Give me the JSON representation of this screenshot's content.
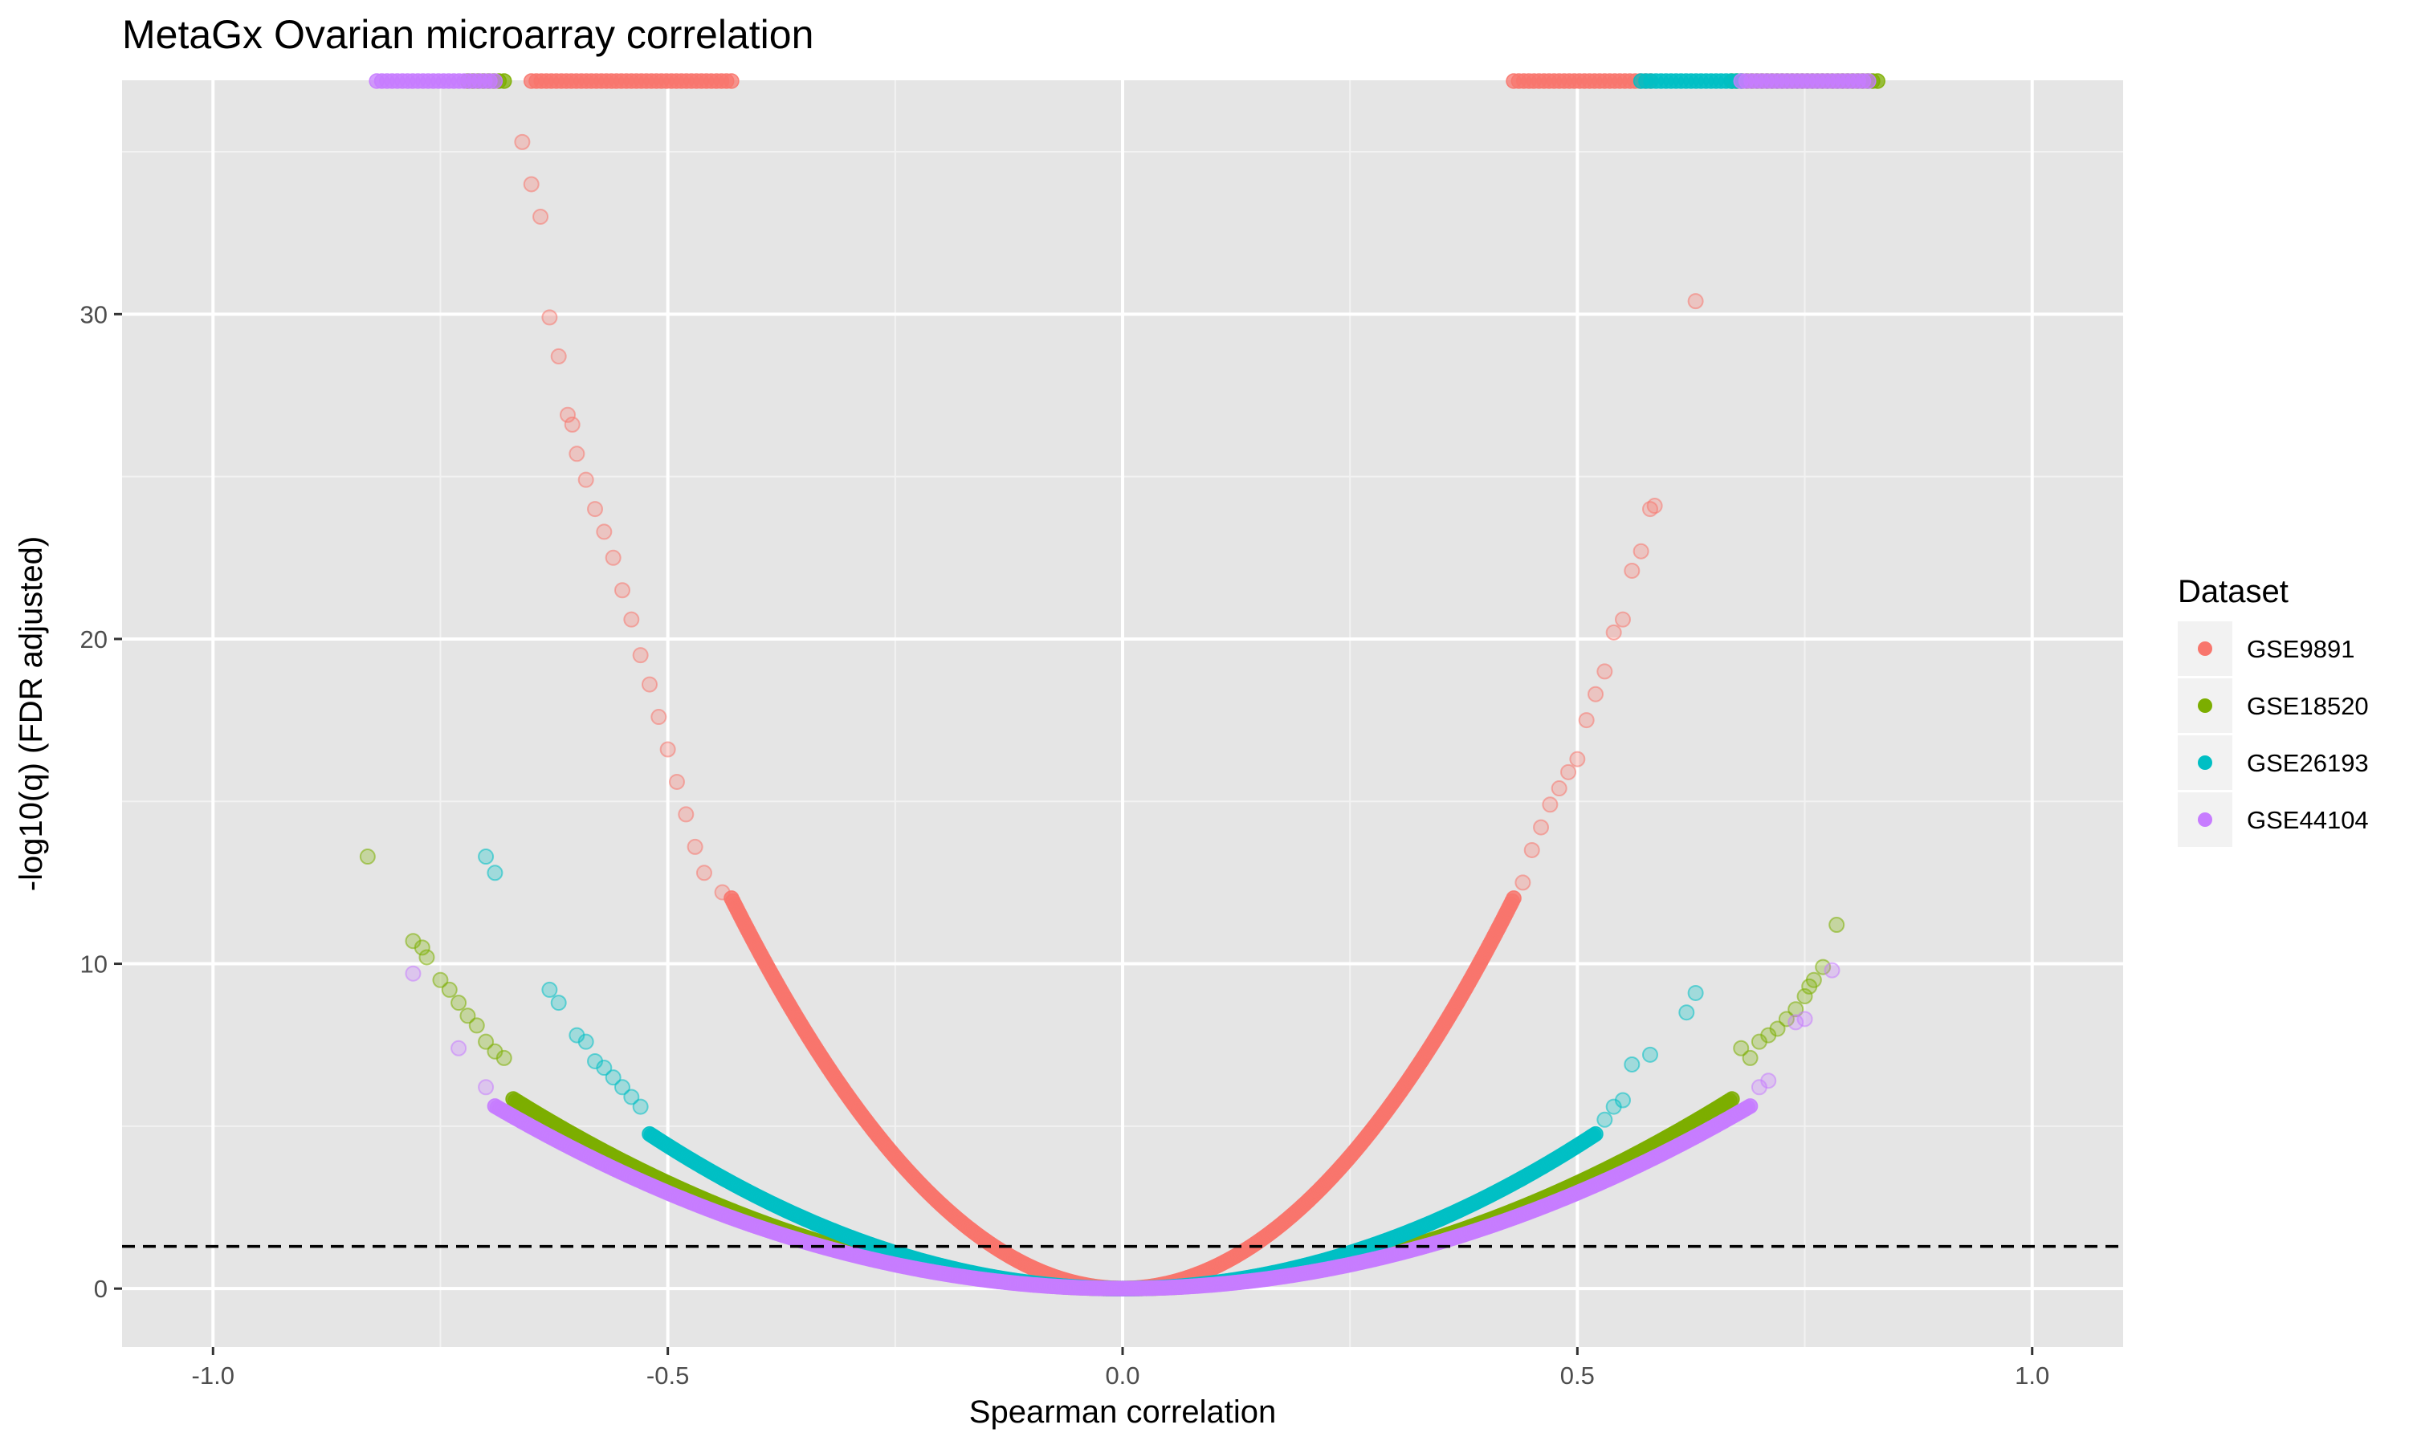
{
  "chart_data": {
    "type": "scatter",
    "title": "MetaGx Ovarian microarray correlation",
    "xlabel": "Spearman correlation",
    "ylabel": "-log10(q) (FDR adjusted)",
    "xlim": [
      -1.1,
      1.1
    ],
    "ylim": [
      -1.8,
      37.2
    ],
    "x_ticks": [
      -1.0,
      -0.5,
      0.0,
      0.5,
      1.0
    ],
    "x_tick_labels": [
      "-1.0",
      "-0.5",
      "0.0",
      "0.5",
      "1.0"
    ],
    "y_ticks": [
      0,
      10,
      20,
      30
    ],
    "y_tick_labels": [
      "0",
      "10",
      "20",
      "30"
    ],
    "grid": true,
    "background": "#e5e5e5",
    "threshold_line": {
      "y": 1.3,
      "style": "dashed",
      "color": "#000000"
    },
    "legend": {
      "title": "Dataset",
      "position": "right"
    },
    "series": [
      {
        "name": "GSE9891",
        "color": "#f8766d",
        "curve": {
          "k": 65.0,
          "x_min": -0.43,
          "x_max": 0.43
        },
        "outliers": [
          [
            -0.66,
            35.3
          ],
          [
            -0.65,
            34.0
          ],
          [
            -0.64,
            33.0
          ],
          [
            -0.63,
            29.9
          ],
          [
            -0.62,
            28.7
          ],
          [
            -0.61,
            26.9
          ],
          [
            -0.605,
            26.6
          ],
          [
            -0.6,
            25.7
          ],
          [
            -0.59,
            24.9
          ],
          [
            -0.58,
            24.0
          ],
          [
            -0.57,
            23.3
          ],
          [
            -0.56,
            22.5
          ],
          [
            -0.55,
            21.5
          ],
          [
            -0.54,
            20.6
          ],
          [
            -0.53,
            19.5
          ],
          [
            -0.52,
            18.6
          ],
          [
            -0.51,
            17.6
          ],
          [
            -0.5,
            16.6
          ],
          [
            -0.49,
            15.6
          ],
          [
            -0.48,
            14.6
          ],
          [
            -0.47,
            13.6
          ],
          [
            -0.46,
            12.8
          ],
          [
            -0.44,
            12.2
          ],
          [
            0.44,
            12.5
          ],
          [
            0.45,
            13.5
          ],
          [
            0.46,
            14.2
          ],
          [
            0.47,
            14.9
          ],
          [
            0.48,
            15.4
          ],
          [
            0.49,
            15.9
          ],
          [
            0.5,
            16.3
          ],
          [
            0.51,
            17.5
          ],
          [
            0.52,
            18.3
          ],
          [
            0.53,
            19.0
          ],
          [
            0.54,
            20.2
          ],
          [
            0.55,
            20.6
          ],
          [
            0.56,
            22.1
          ],
          [
            0.57,
            22.7
          ],
          [
            0.58,
            24.0
          ],
          [
            0.585,
            24.1
          ],
          [
            0.63,
            30.4
          ]
        ],
        "capped": [
          [
            -0.65,
            -0.43
          ],
          [
            0.43,
            0.58
          ]
        ]
      },
      {
        "name": "GSE18520",
        "color": "#7cae00",
        "curve": {
          "k": 13.0,
          "x_min": -0.67,
          "x_max": 0.67
        },
        "outliers": [
          [
            -0.83,
            13.3
          ],
          [
            -0.78,
            10.7
          ],
          [
            -0.77,
            10.5
          ],
          [
            -0.765,
            10.2
          ],
          [
            -0.75,
            9.5
          ],
          [
            -0.74,
            9.2
          ],
          [
            -0.73,
            8.8
          ],
          [
            -0.72,
            8.4
          ],
          [
            -0.71,
            8.1
          ],
          [
            -0.7,
            7.6
          ],
          [
            -0.69,
            7.3
          ],
          [
            -0.68,
            7.1
          ],
          [
            0.68,
            7.4
          ],
          [
            0.69,
            7.1
          ],
          [
            0.7,
            7.6
          ],
          [
            0.71,
            7.8
          ],
          [
            0.72,
            8.0
          ],
          [
            0.73,
            8.3
          ],
          [
            0.74,
            8.6
          ],
          [
            0.75,
            9.0
          ],
          [
            0.755,
            9.3
          ],
          [
            0.76,
            9.5
          ],
          [
            0.77,
            9.9
          ],
          [
            0.785,
            11.2
          ]
        ],
        "capped": [
          [
            -0.72,
            -0.68
          ],
          [
            0.67,
            0.83
          ]
        ]
      },
      {
        "name": "GSE26193",
        "color": "#00bfc4",
        "curve": {
          "k": 17.6,
          "x_min": -0.52,
          "x_max": 0.52
        },
        "outliers": [
          [
            -0.7,
            13.3
          ],
          [
            -0.69,
            12.8
          ],
          [
            -0.63,
            9.2
          ],
          [
            -0.62,
            8.8
          ],
          [
            -0.6,
            7.8
          ],
          [
            -0.59,
            7.6
          ],
          [
            -0.58,
            7.0
          ],
          [
            -0.57,
            6.8
          ],
          [
            -0.56,
            6.5
          ],
          [
            -0.55,
            6.2
          ],
          [
            -0.54,
            5.9
          ],
          [
            -0.53,
            5.6
          ],
          [
            0.53,
            5.2
          ],
          [
            0.54,
            5.6
          ],
          [
            0.55,
            5.8
          ],
          [
            0.56,
            6.9
          ],
          [
            0.58,
            7.2
          ],
          [
            0.62,
            8.5
          ],
          [
            0.63,
            9.1
          ]
        ],
        "capped": [
          [
            0.57,
            0.68
          ]
        ]
      },
      {
        "name": "GSE44104",
        "color": "#c77cff",
        "curve": {
          "k": 11.8,
          "x_min": -0.69,
          "x_max": 0.69
        },
        "outliers": [
          [
            -0.78,
            9.7
          ],
          [
            -0.73,
            7.4
          ],
          [
            -0.7,
            6.2
          ],
          [
            0.7,
            6.2
          ],
          [
            0.71,
            6.4
          ],
          [
            0.74,
            8.2
          ],
          [
            0.75,
            8.3
          ],
          [
            0.78,
            9.8
          ]
        ],
        "capped": [
          [
            -0.82,
            -0.69
          ],
          [
            0.68,
            0.82
          ]
        ]
      }
    ]
  }
}
